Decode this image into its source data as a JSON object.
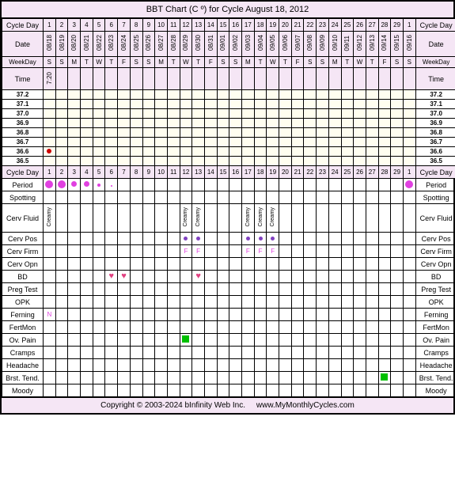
{
  "title": "BBT Chart (C º) for Cycle August 18, 2012",
  "labels": {
    "cycleDay": "Cycle Day",
    "date": "Date",
    "weekday": "WeekDay",
    "time": "Time",
    "period": "Period",
    "spotting": "Spotting",
    "cervFluid": "Cerv Fluid",
    "cervPos": "Cerv Pos",
    "cervFirm": "Cerv Firm",
    "cervOpn": "Cerv Opn",
    "bd": "BD",
    "pregTest": "Preg Test",
    "opk": "OPK",
    "ferning": "Ferning",
    "fertMon": "FertMon",
    "ovPain": "Ov. Pain",
    "cramps": "Cramps",
    "headache": "Headache",
    "brstTend": "Brst. Tend.",
    "moody": "Moody"
  },
  "cycleDays": [
    "1",
    "2",
    "3",
    "4",
    "5",
    "6",
    "7",
    "8",
    "9",
    "10",
    "11",
    "12",
    "13",
    "14",
    "15",
    "16",
    "17",
    "18",
    "19",
    "20",
    "21",
    "22",
    "23",
    "24",
    "25",
    "26",
    "27",
    "28",
    "29",
    "1"
  ],
  "dates": [
    "08/18",
    "08/19",
    "08/20",
    "08/21",
    "08/22",
    "08/23",
    "08/24",
    "08/25",
    "08/26",
    "08/27",
    "08/28",
    "08/29",
    "08/30",
    "08/31",
    "09/01",
    "09/02",
    "09/03",
    "09/04",
    "09/05",
    "09/06",
    "09/07",
    "09/08",
    "09/09",
    "09/10",
    "09/11",
    "09/12",
    "09/13",
    "09/14",
    "09/15",
    "09/16"
  ],
  "weekdays": [
    "S",
    "S",
    "M",
    "T",
    "W",
    "T",
    "F",
    "S",
    "S",
    "M",
    "T",
    "W",
    "T",
    "F",
    "S",
    "S",
    "M",
    "T",
    "W",
    "T",
    "F",
    "S",
    "S",
    "M",
    "T",
    "W",
    "T",
    "F",
    "S",
    "S"
  ],
  "wedIdx": [
    4,
    11,
    18,
    25
  ],
  "time": {
    "0": "7:20"
  },
  "tempLabels": [
    "37.2",
    "37.1",
    "37.0",
    "36.9",
    "36.8",
    "36.7",
    "36.6",
    "36.5"
  ],
  "tempPoints": {
    "0": 6
  },
  "period": {
    "0": "lg",
    "1": "lg",
    "2": "md",
    "3": "md",
    "4": "sm",
    "5": "xs",
    "29": "lg"
  },
  "cervFluid": {
    "0": "Creamy",
    "11": "Creamy",
    "12": "Creamy",
    "16": "Creamy",
    "17": "Creamy",
    "18": "Creamy"
  },
  "cervPos": {
    "11": true,
    "12": true,
    "16": true,
    "17": true,
    "18": true
  },
  "cervFirm": {
    "11": "F",
    "12": "F",
    "16": "F",
    "17": "F",
    "18": "F"
  },
  "bd": {
    "5": true,
    "6": true,
    "12": true
  },
  "ferning": {
    "0": "N"
  },
  "ovPain": {
    "11": true
  },
  "brstTend": {
    "27": true
  },
  "footer": {
    "copyright": "Copyright © 2003-2024 bInfinity Web Inc.",
    "url": "www.MyMonthlyCycles.com"
  },
  "colors": {
    "headerBg": "#f5e6f5",
    "tempBg": "#fffef0",
    "wedBg": "#d0e0f0",
    "border": "#000000",
    "dotRed": "#cc0000",
    "dotPink": "#e040e0",
    "dotPurple": "#8040c0",
    "heart": "#e04080",
    "green": "#00c000"
  }
}
